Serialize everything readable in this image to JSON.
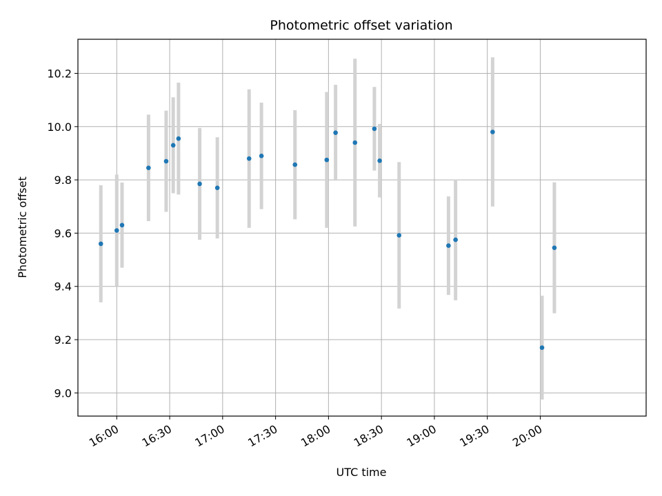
{
  "chart_data": {
    "type": "scatter",
    "title": "Photometric offset variation",
    "xlabel": "UTC time",
    "ylabel": "Photometric offset",
    "xlim": [
      "15:38",
      "21:00"
    ],
    "ylim": [
      8.913,
      10.328
    ],
    "x_ticks": [
      "16:00",
      "16:30",
      "17:00",
      "17:30",
      "18:00",
      "18:30",
      "19:00",
      "19:30",
      "20:00"
    ],
    "y_ticks": [
      "9.0",
      "9.2",
      "9.4",
      "9.6",
      "9.8",
      "10.0",
      "10.2"
    ],
    "grid": true,
    "point_color": "#1f77b4",
    "errorbar_color": "#d3d3d3",
    "points": [
      {
        "x": "15:51",
        "y": 9.56,
        "err": 0.22
      },
      {
        "x": "16:00",
        "y": 9.61,
        "err": 0.21
      },
      {
        "x": "16:03",
        "y": 9.63,
        "err": 0.16
      },
      {
        "x": "16:18",
        "y": 9.845,
        "err": 0.2
      },
      {
        "x": "16:28",
        "y": 9.87,
        "err": 0.19
      },
      {
        "x": "16:32",
        "y": 9.93,
        "err": 0.18
      },
      {
        "x": "16:35",
        "y": 9.955,
        "err": 0.21
      },
      {
        "x": "16:47",
        "y": 9.785,
        "err": 0.21
      },
      {
        "x": "16:57",
        "y": 9.77,
        "err": 0.19
      },
      {
        "x": "17:15",
        "y": 9.88,
        "err": 0.26
      },
      {
        "x": "17:22",
        "y": 9.89,
        "err": 0.2
      },
      {
        "x": "17:41",
        "y": 9.857,
        "err": 0.205
      },
      {
        "x": "17:59",
        "y": 9.875,
        "err": 0.255
      },
      {
        "x": "18:04",
        "y": 9.977,
        "err": 0.18
      },
      {
        "x": "18:15",
        "y": 9.94,
        "err": 0.315
      },
      {
        "x": "18:26",
        "y": 9.992,
        "err": 0.157
      },
      {
        "x": "18:29",
        "y": 9.872,
        "err": 0.138
      },
      {
        "x": "18:40",
        "y": 9.592,
        "err": 0.275
      },
      {
        "x": "19:08",
        "y": 9.553,
        "err": 0.185
      },
      {
        "x": "19:12",
        "y": 9.575,
        "err": 0.227
      },
      {
        "x": "19:33",
        "y": 9.98,
        "err": 0.28
      },
      {
        "x": "20:01",
        "y": 9.17,
        "err": 0.195
      },
      {
        "x": "20:08",
        "y": 9.545,
        "err": 0.246
      }
    ]
  }
}
